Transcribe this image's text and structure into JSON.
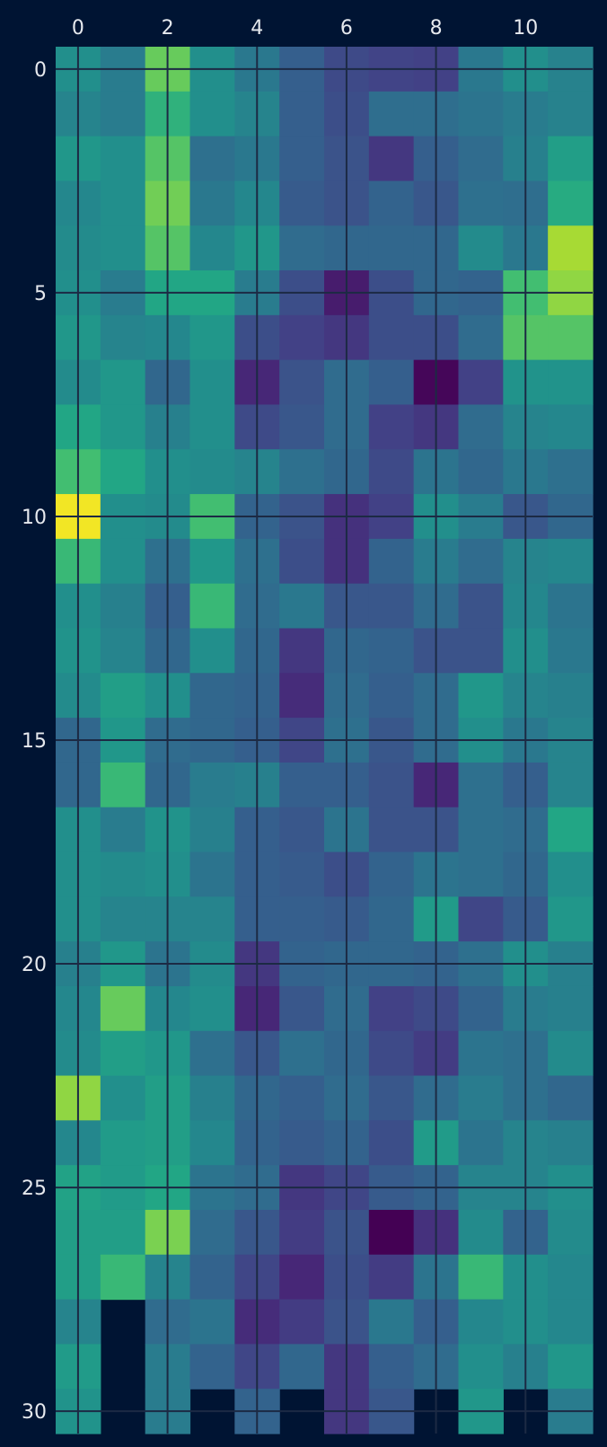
{
  "chart_data": {
    "type": "heatmap",
    "title": "",
    "xlabel": "",
    "ylabel": "",
    "x_tick_labels": [
      "0",
      "2",
      "4",
      "6",
      "8",
      "10"
    ],
    "y_tick_labels": [
      "0",
      "5",
      "10",
      "15",
      "20",
      "25",
      "30"
    ],
    "x_ticks": [
      0,
      2,
      4,
      6,
      8,
      10
    ],
    "y_ticks": [
      0,
      5,
      10,
      15,
      20,
      25,
      30
    ],
    "n_cols": 12,
    "row_start": -0.5,
    "row_end": 30.5,
    "colormap": "viridis",
    "value_range": [
      0,
      1
    ],
    "grid": true,
    "colors": {
      "background": "#001433",
      "grid": "#1c2a44",
      "tick_text": "#e6e9ee"
    },
    "values": [
      [
        0.62,
        0.52,
        0.86,
        0.62,
        0.5,
        0.38,
        0.28,
        0.25,
        0.24,
        0.5,
        0.62,
        0.55
      ],
      [
        0.56,
        0.52,
        0.78,
        0.62,
        0.56,
        0.38,
        0.3,
        0.45,
        0.45,
        0.48,
        0.52,
        0.55
      ],
      [
        0.66,
        0.62,
        0.84,
        0.46,
        0.5,
        0.38,
        0.32,
        0.2,
        0.38,
        0.44,
        0.54,
        0.7
      ],
      [
        0.58,
        0.62,
        0.87,
        0.5,
        0.58,
        0.36,
        0.32,
        0.4,
        0.34,
        0.46,
        0.45,
        0.76
      ],
      [
        0.6,
        0.62,
        0.84,
        0.58,
        0.66,
        0.44,
        0.42,
        0.42,
        0.42,
        0.6,
        0.5,
        0.92
      ],
      [
        0.62,
        0.52,
        0.74,
        0.74,
        0.52,
        0.3,
        0.1,
        0.3,
        0.42,
        0.4,
        0.82,
        0.9
      ],
      [
        0.66,
        0.56,
        0.58,
        0.66,
        0.3,
        0.24,
        0.2,
        0.3,
        0.3,
        0.44,
        0.84,
        0.84
      ],
      [
        0.6,
        0.66,
        0.42,
        0.62,
        0.14,
        0.32,
        0.44,
        0.38,
        0.02,
        0.24,
        0.64,
        0.64
      ],
      [
        0.74,
        0.66,
        0.54,
        0.62,
        0.28,
        0.34,
        0.44,
        0.24,
        0.2,
        0.44,
        0.56,
        0.58
      ],
      [
        0.82,
        0.74,
        0.62,
        0.6,
        0.56,
        0.46,
        0.42,
        0.28,
        0.48,
        0.42,
        0.5,
        0.46
      ],
      [
        0.99,
        0.62,
        0.6,
        0.82,
        0.4,
        0.32,
        0.18,
        0.24,
        0.62,
        0.52,
        0.34,
        0.42
      ],
      [
        0.8,
        0.62,
        0.46,
        0.66,
        0.46,
        0.3,
        0.18,
        0.4,
        0.52,
        0.44,
        0.56,
        0.58
      ],
      [
        0.62,
        0.54,
        0.38,
        0.8,
        0.44,
        0.5,
        0.34,
        0.34,
        0.44,
        0.32,
        0.58,
        0.48
      ],
      [
        0.64,
        0.56,
        0.42,
        0.62,
        0.42,
        0.2,
        0.42,
        0.4,
        0.32,
        0.32,
        0.62,
        0.5
      ],
      [
        0.6,
        0.7,
        0.62,
        0.42,
        0.4,
        0.16,
        0.44,
        0.38,
        0.44,
        0.66,
        0.56,
        0.54
      ],
      [
        0.42,
        0.66,
        0.44,
        0.42,
        0.38,
        0.26,
        0.46,
        0.34,
        0.44,
        0.62,
        0.5,
        0.56
      ],
      [
        0.42,
        0.8,
        0.42,
        0.52,
        0.54,
        0.38,
        0.38,
        0.32,
        0.14,
        0.46,
        0.38,
        0.56
      ],
      [
        0.62,
        0.52,
        0.64,
        0.54,
        0.38,
        0.34,
        0.48,
        0.32,
        0.32,
        0.46,
        0.44,
        0.74
      ],
      [
        0.62,
        0.6,
        0.62,
        0.48,
        0.38,
        0.36,
        0.3,
        0.4,
        0.48,
        0.46,
        0.42,
        0.62
      ],
      [
        0.62,
        0.56,
        0.56,
        0.56,
        0.38,
        0.38,
        0.36,
        0.42,
        0.68,
        0.26,
        0.36,
        0.66
      ],
      [
        0.54,
        0.66,
        0.48,
        0.6,
        0.2,
        0.4,
        0.42,
        0.42,
        0.4,
        0.46,
        0.62,
        0.54
      ],
      [
        0.58,
        0.86,
        0.58,
        0.62,
        0.14,
        0.34,
        0.44,
        0.24,
        0.28,
        0.4,
        0.52,
        0.54
      ],
      [
        0.6,
        0.7,
        0.66,
        0.46,
        0.34,
        0.46,
        0.42,
        0.28,
        0.22,
        0.48,
        0.46,
        0.6
      ],
      [
        0.9,
        0.62,
        0.7,
        0.54,
        0.42,
        0.38,
        0.44,
        0.34,
        0.44,
        0.52,
        0.46,
        0.42
      ],
      [
        0.58,
        0.68,
        0.7,
        0.58,
        0.4,
        0.36,
        0.4,
        0.3,
        0.68,
        0.48,
        0.56,
        0.54
      ],
      [
        0.72,
        0.68,
        0.74,
        0.48,
        0.44,
        0.2,
        0.26,
        0.36,
        0.4,
        0.56,
        0.56,
        0.62
      ],
      [
        0.7,
        0.7,
        0.88,
        0.44,
        0.34,
        0.22,
        0.32,
        0.0,
        0.18,
        0.6,
        0.4,
        0.6
      ],
      [
        0.7,
        0.8,
        0.56,
        0.4,
        0.26,
        0.14,
        0.3,
        0.22,
        0.48,
        0.8,
        0.62,
        0.58
      ],
      [
        0.56,
        null,
        0.44,
        0.48,
        0.16,
        0.22,
        0.32,
        0.5,
        0.38,
        0.58,
        0.62,
        0.58
      ],
      [
        0.68,
        null,
        0.52,
        0.4,
        0.26,
        0.42,
        0.2,
        0.38,
        0.44,
        0.62,
        0.54,
        0.66
      ],
      [
        0.64,
        null,
        0.52,
        null,
        0.4,
        null,
        0.2,
        0.34,
        null,
        0.66,
        null,
        0.52
      ]
    ]
  }
}
